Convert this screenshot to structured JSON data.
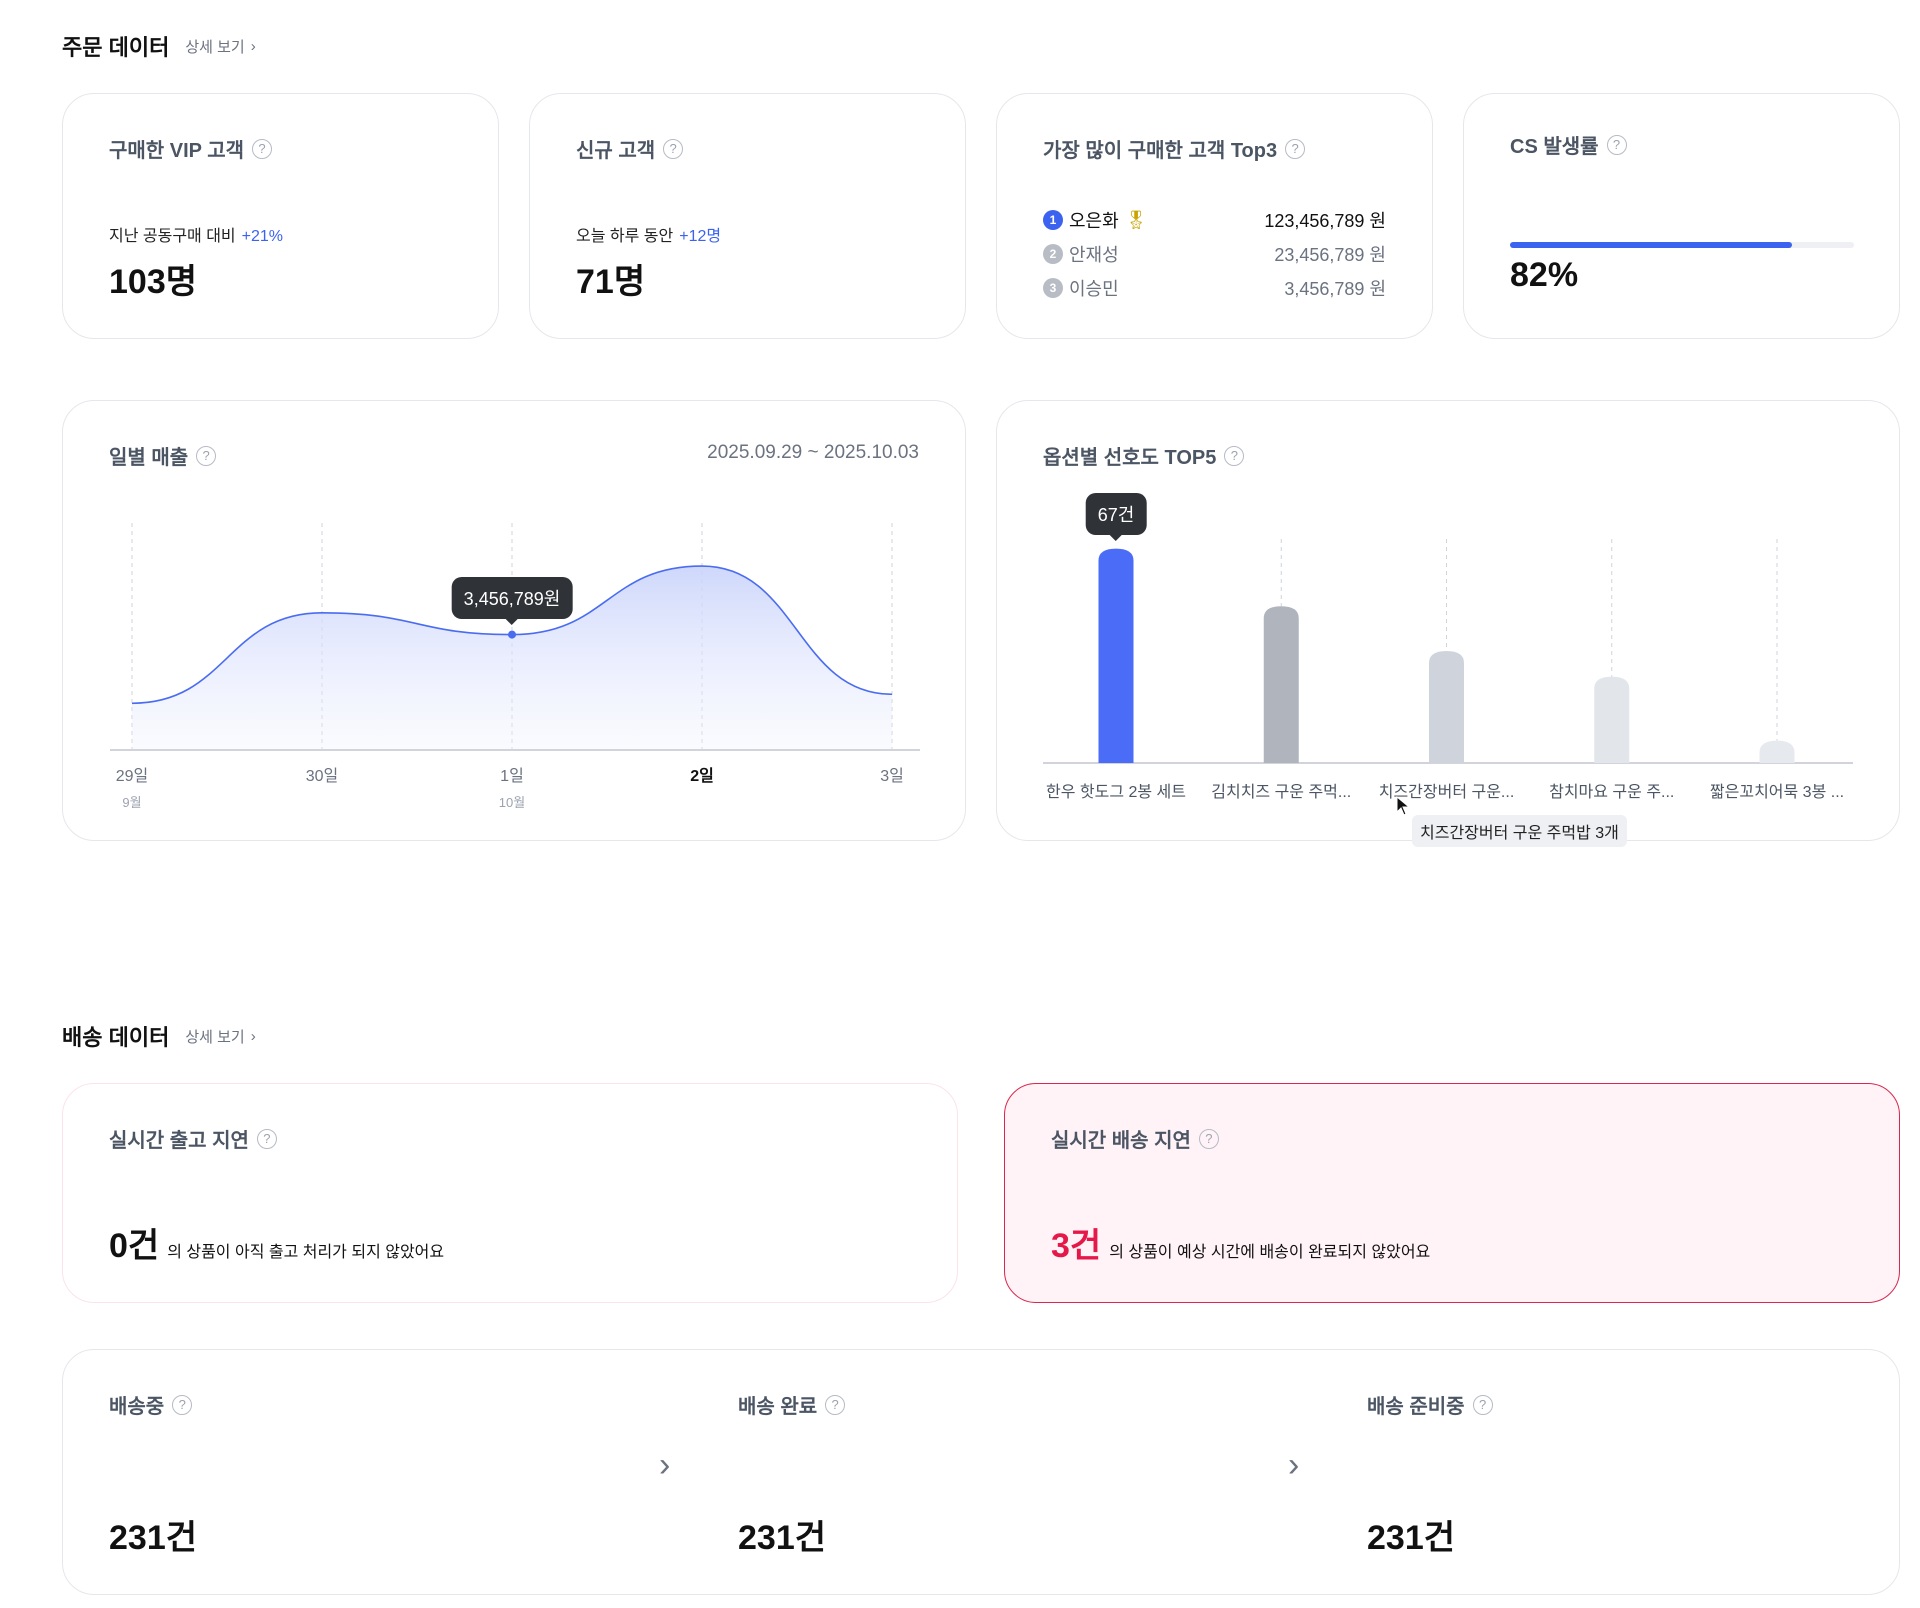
{
  "order_section": {
    "title": "주문 데이터",
    "detail_link": "상세 보기"
  },
  "vip": {
    "title": "구매한 VIP 고객",
    "sub_label": "지난 공동구매 대비",
    "sub_delta": "+21%",
    "value": "103명"
  },
  "new_customers": {
    "title": "신규 고객",
    "sub_label": "오늘 하루 동안",
    "sub_delta": "+12명",
    "value": "71명"
  },
  "top3": {
    "title": "가장 많이 구매한 고객 Top3",
    "items": [
      {
        "rank": "1",
        "name": "오은화",
        "amount": "123,456,789 원",
        "icon": "medal-icon"
      },
      {
        "rank": "2",
        "name": "안재성",
        "amount": "23,456,789 원"
      },
      {
        "rank": "3",
        "name": "이승민",
        "amount": "3,456,789 원"
      }
    ]
  },
  "cs_rate": {
    "title": "CS 발생률",
    "value": "82%",
    "progress": 0.82
  },
  "chart_data": [
    {
      "type": "area",
      "title": "일별 매출",
      "date_range": "2025.09.29 ~ 2025.10.03",
      "categories": [
        "29일",
        "30일",
        "1일",
        "2일",
        "3일"
      ],
      "month_labels": [
        "9월",
        "",
        "10월",
        "",
        ""
      ],
      "highlight_category": "2일",
      "values": [
        1400000,
        4110000,
        3456789,
        5510000,
        1670000
      ],
      "ylim": [
        0,
        6800000
      ],
      "tooltip": {
        "category": "1일",
        "label": "3,456,789원"
      },
      "color": "#4a6cf0",
      "grid": "vertical-dashed"
    },
    {
      "type": "bar",
      "title": "옵션별 선호도 TOP5",
      "categories": [
        "한우 핫도그 2봉 세트",
        "김치치즈 구운 주먹...",
        "치즈간장버터 구운...",
        "참치마요 구운 주...",
        "짧은꼬치어묵 3봉 ..."
      ],
      "values": [
        67,
        49,
        35,
        27,
        7
      ],
      "ylim": [
        0,
        70
      ],
      "colors": [
        "#4a6cf7",
        "#b0b4bd",
        "#cfd4dc",
        "#e2e6eb",
        "#e6e9ee"
      ],
      "tooltip": {
        "category": "한우 핫도그 2봉 세트",
        "label": "67건"
      },
      "hover_label": "치즈간장버터 구운 주먹밥 3개"
    }
  ],
  "delivery_section": {
    "title": "배송 데이터",
    "detail_link": "상세 보기"
  },
  "release_delay": {
    "title": "실시간 출고 지연",
    "value": "0건",
    "desc": "의 상품이 아직 출고 처리가 되지 않았어요"
  },
  "delivery_delay": {
    "title": "실시간 배송 지연",
    "value": "3건",
    "desc": "의 상품이 예상 시간에 배송이 완료되지 않았어요",
    "accent": "#e5184a"
  },
  "status": [
    {
      "title": "배송중",
      "value": "231건"
    },
    {
      "title": "배송 완료",
      "value": "231건"
    },
    {
      "title": "배송 준비중",
      "value": "231건"
    }
  ],
  "help_glyph": "?",
  "chevron_glyph": "›"
}
